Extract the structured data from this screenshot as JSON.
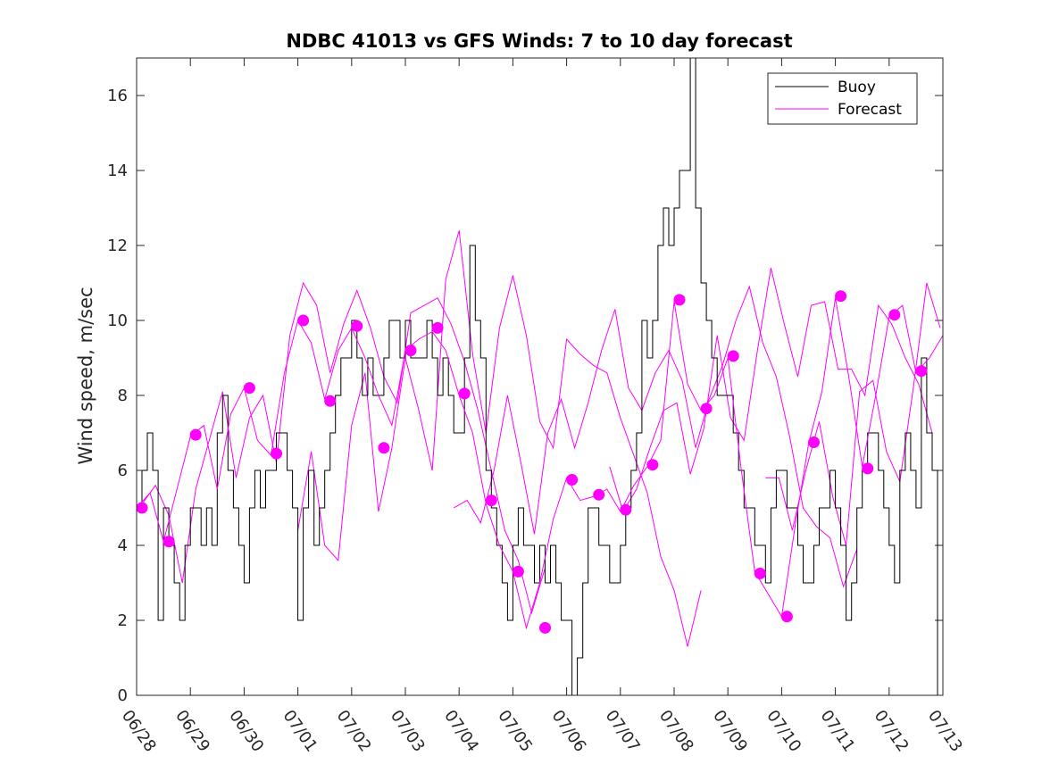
{
  "chart_data": {
    "type": "line",
    "title": "NDBC 41013 vs GFS Winds: 7 to 10 day forecast",
    "xlabel": "",
    "ylabel": "Wind speed, m/sec",
    "xlim": [
      0,
      15
    ],
    "ylim": [
      0,
      17
    ],
    "x_tick_labels": [
      "06/28",
      "06/29",
      "06/30",
      "07/01",
      "07/02",
      "07/03",
      "07/04",
      "07/05",
      "07/06",
      "07/07",
      "07/08",
      "07/09",
      "07/10",
      "07/11",
      "07/12",
      "07/13"
    ],
    "y_ticks": [
      0,
      2,
      4,
      6,
      8,
      10,
      12,
      14,
      16
    ],
    "grid": false,
    "legend": {
      "placement": "top-right",
      "entries": [
        {
          "label": "Buoy",
          "color": "#000000"
        },
        {
          "label": "Forecast",
          "color": "#ff00ff"
        }
      ]
    },
    "series": [
      {
        "name": "Buoy",
        "color": "#000000",
        "x": [
          0.0,
          0.1,
          0.2,
          0.3,
          0.4,
          0.5,
          0.6,
          0.7,
          0.8,
          0.9,
          1.0,
          1.1,
          1.2,
          1.3,
          1.4,
          1.5,
          1.6,
          1.7,
          1.8,
          1.9,
          2.0,
          2.1,
          2.2,
          2.3,
          2.4,
          2.5,
          2.6,
          2.7,
          2.8,
          2.9,
          3.0,
          3.1,
          3.2,
          3.3,
          3.4,
          3.5,
          3.6,
          3.7,
          3.8,
          3.9,
          4.0,
          4.1,
          4.2,
          4.3,
          4.4,
          4.5,
          4.6,
          4.7,
          4.8,
          4.9,
          5.0,
          5.1,
          5.2,
          5.3,
          5.4,
          5.5,
          5.6,
          5.7,
          5.8,
          5.9,
          6.0,
          6.1,
          6.2,
          6.3,
          6.4,
          6.5,
          6.6,
          6.7,
          6.8,
          6.9,
          7.0,
          7.1,
          7.2,
          7.3,
          7.4,
          7.5,
          7.6,
          7.7,
          7.8,
          7.9,
          8.0,
          8.1,
          8.2,
          8.3,
          8.4,
          8.5,
          8.6,
          8.7,
          8.8,
          8.9,
          9.0,
          9.1,
          9.2,
          9.3,
          9.4,
          9.5,
          9.6,
          9.7,
          9.8,
          9.9,
          10.0,
          10.1,
          10.2,
          10.3,
          10.4,
          10.5,
          10.6,
          10.7,
          10.8,
          10.9,
          11.0,
          11.1,
          11.2,
          11.3,
          11.4,
          11.5,
          11.6,
          11.7,
          11.8,
          11.9,
          12.0,
          12.1,
          12.2,
          12.3,
          12.4,
          12.5,
          12.6,
          12.7,
          12.8,
          12.9,
          13.0,
          13.1,
          13.2,
          13.3,
          13.4,
          13.5,
          13.6,
          13.7,
          13.8,
          13.9,
          14.0,
          14.1,
          14.2,
          14.3,
          14.4,
          14.5,
          14.6,
          14.7,
          14.8,
          14.9
        ],
        "values": [
          5,
          6,
          7,
          6,
          2,
          5,
          4,
          3,
          2,
          4,
          5,
          5,
          4,
          5,
          4,
          7,
          8,
          6,
          5,
          4,
          3,
          5,
          6,
          5,
          6,
          6,
          7,
          7,
          6,
          5,
          2,
          5,
          6,
          4,
          5,
          6,
          7,
          8,
          9,
          9,
          10,
          9,
          8,
          9,
          8,
          8,
          9,
          10,
          10,
          9,
          10,
          9,
          9,
          9,
          10,
          9,
          8,
          9,
          8,
          7,
          7,
          9,
          12,
          10,
          9,
          6,
          5,
          4,
          3,
          2,
          4,
          5,
          4,
          4,
          3,
          4,
          3,
          4,
          3,
          2,
          2,
          0,
          1,
          3,
          5,
          5,
          4,
          4,
          3,
          3,
          4,
          5,
          6,
          7,
          10,
          9,
          10,
          12,
          13,
          12,
          13,
          14,
          14,
          17,
          13,
          11,
          10,
          9,
          8,
          8,
          8,
          7,
          6,
          5,
          5,
          4,
          4,
          3,
          5,
          6,
          6,
          5,
          5,
          4,
          3,
          3,
          4,
          5,
          5,
          6,
          5,
          4,
          2,
          3,
          5,
          6,
          7,
          7,
          6,
          5,
          4,
          3,
          6,
          7,
          6,
          5,
          9,
          7,
          6,
          0
        ]
      },
      {
        "name": "Forecast",
        "color": "#ff00ff",
        "x": [
          0,
          0.25,
          0.5,
          0.75,
          1.0,
          1.25,
          1.5,
          1.75,
          2.0,
          2.25,
          2.5,
          2.75,
          3.0,
          3.25,
          3.5,
          3.75,
          4.0,
          4.25,
          4.5,
          4.75,
          5.0,
          5.25,
          5.5,
          5.75,
          6.0,
          6.25,
          6.5,
          6.75,
          7.0,
          7.25,
          7.5,
          7.75,
          8.0,
          8.25,
          8.5,
          8.75,
          9.0,
          9.25,
          9.5,
          9.75,
          10.0,
          10.25,
          10.5,
          10.75,
          11.0,
          11.25,
          11.5,
          11.75,
          12.0,
          12.25,
          12.5,
          12.75,
          13.0,
          13.25,
          13.5,
          13.75,
          14.0,
          14.25,
          14.5,
          14.75,
          15.0
        ],
        "values": [
          5.0,
          5.4,
          4.1,
          5.5,
          6.9,
          7.2,
          5.5,
          7.5,
          8.2,
          6.8,
          6.4,
          8.6,
          10.0,
          9.4,
          7.9,
          9.2,
          9.8,
          9.0,
          8.0,
          7.2,
          9.2,
          9.5,
          9.7,
          9.2,
          8.0,
          7.0,
          5.1,
          4.0,
          3.3,
          1.8,
          3.0,
          4.7,
          5.8,
          5.2,
          5.3,
          5.5,
          4.9,
          5.6,
          6.1,
          6.8,
          10.5,
          8.3,
          7.6,
          8.0,
          9.0,
          6.0,
          3.3,
          2.7,
          2.1,
          4.5,
          6.7,
          8.1,
          10.6,
          8.5,
          6.1,
          8.0,
          10.1,
          10.4,
          8.6,
          9.0,
          9.6
        ]
      }
    ],
    "forecast_runs": [
      [
        5.1,
        5.6,
        4.8,
        3.0,
        5.5,
        6.8,
        8.1,
        5.8,
        7.4,
        8.0,
        6.2,
        9.6,
        11.0,
        10.4,
        8.6,
        9.9,
        10.8,
        9.8,
        8.5,
        7.8,
        10.2,
        10.4,
        10.6,
        9.9,
        8.9,
        7.6,
        6.0,
        4.4,
        3.6,
        2.2,
        3.4
      ],
      [
        4.4,
        6.5,
        4.0,
        3.6,
        7.2,
        8.6,
        4.9,
        6.6,
        9.0,
        7.6,
        6.0,
        11.1,
        12.4,
        9.1,
        7.0,
        9.8,
        11.2,
        9.6,
        7.3,
        6.6,
        9.5,
        9.1,
        8.8,
        8.6,
        7.4,
        6.4,
        5.4,
        3.7,
        2.8,
        1.3,
        2.8
      ],
      [
        5.0,
        5.2,
        4.6,
        6.0,
        8.0,
        6.2,
        4.3,
        7.0,
        7.9,
        6.6,
        7.8,
        9.2,
        10.3,
        8.2,
        7.6,
        8.6,
        9.2,
        8.4,
        6.6,
        7.9,
        8.8,
        10.0,
        10.9,
        9.4,
        8.5,
        6.9,
        5.0,
        4.5,
        4.2,
        2.9,
        3.9
      ],
      [
        6.1,
        4.9,
        5.5,
        6.6,
        7.6,
        7.8,
        5.9,
        7.1,
        9.6,
        7.4,
        6.8,
        9.2,
        11.4,
        9.9,
        8.5,
        10.4,
        10.5,
        8.7,
        8.7,
        8.0,
        10.4,
        9.9,
        9.0,
        8.3,
        7.0,
        5.6,
        4.3,
        3.2,
        4.6,
        2.4,
        2.5
      ],
      [
        5.8,
        5.8,
        4.4,
        6.0,
        7.3,
        5.3,
        4.0,
        8.1,
        8.4,
        6.5,
        5.7,
        8.2,
        11.0,
        9.8,
        8.3,
        8.8,
        9.1,
        8.7,
        7.3,
        6.7,
        8.6,
        8.9,
        9.4,
        8.7,
        7.6,
        6.0,
        4.6,
        3.3,
        3.0,
        0.7,
        2.7
      ]
    ],
    "markers": [
      {
        "x": 0.1,
        "y": 5.0
      },
      {
        "x": 0.6,
        "y": 4.1
      },
      {
        "x": 1.1,
        "y": 6.95
      },
      {
        "x": 2.1,
        "y": 8.2
      },
      {
        "x": 2.6,
        "y": 6.45
      },
      {
        "x": 3.1,
        "y": 10.0
      },
      {
        "x": 3.6,
        "y": 7.85
      },
      {
        "x": 4.1,
        "y": 9.85
      },
      {
        "x": 4.6,
        "y": 6.6
      },
      {
        "x": 5.1,
        "y": 9.2
      },
      {
        "x": 5.6,
        "y": 9.8
      },
      {
        "x": 6.1,
        "y": 8.05
      },
      {
        "x": 6.6,
        "y": 5.2
      },
      {
        "x": 7.1,
        "y": 3.3
      },
      {
        "x": 7.6,
        "y": 1.8
      },
      {
        "x": 8.1,
        "y": 5.75
      },
      {
        "x": 8.6,
        "y": 5.35
      },
      {
        "x": 9.1,
        "y": 4.95
      },
      {
        "x": 9.6,
        "y": 6.15
      },
      {
        "x": 10.1,
        "y": 10.55
      },
      {
        "x": 10.6,
        "y": 7.65
      },
      {
        "x": 11.1,
        "y": 9.05
      },
      {
        "x": 11.6,
        "y": 3.25
      },
      {
        "x": 12.1,
        "y": 2.1
      },
      {
        "x": 12.6,
        "y": 6.75
      },
      {
        "x": 13.1,
        "y": 10.65
      },
      {
        "x": 13.6,
        "y": 6.05
      },
      {
        "x": 14.1,
        "y": 10.15
      },
      {
        "x": 14.6,
        "y": 8.65
      }
    ]
  }
}
